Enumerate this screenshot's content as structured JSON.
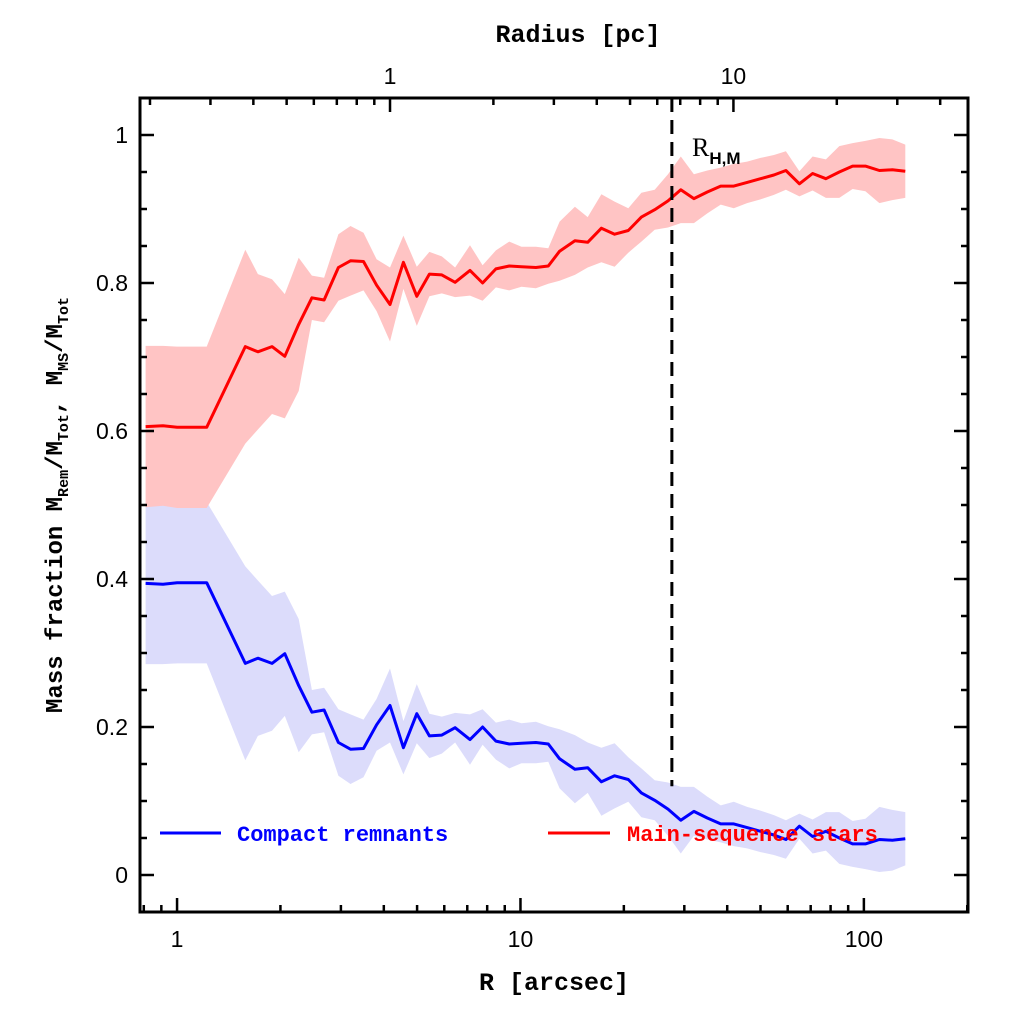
{
  "chart_data": {
    "type": "line",
    "xlabel": "R [arcsec]",
    "x2label": "Radius [pc]",
    "ylabel_parts": {
      "prefix": "Mass fraction  M",
      "sub1": "Rem",
      "mid1": "/M",
      "sub2": "Tot",
      "mid2": ", M",
      "sub3": "MS",
      "mid3": "/M",
      "sub4": "Tot"
    },
    "xscale": "log",
    "xlim": [
      0.78,
      201
    ],
    "ylim": [
      -0.05,
      1.05
    ],
    "arcsec_per_pc": 4.17,
    "xticks": [
      {
        "v": 1,
        "label": "1"
      },
      {
        "v": 10,
        "label": "10"
      },
      {
        "v": 100,
        "label": "100"
      }
    ],
    "x2ticks": [
      {
        "v": 1,
        "label": "1"
      },
      {
        "v": 10,
        "label": "10"
      }
    ],
    "yticks": [
      {
        "v": 0,
        "label": "0"
      },
      {
        "v": 0.2,
        "label": "0.2"
      },
      {
        "v": 0.4,
        "label": "0.4"
      },
      {
        "v": 0.6,
        "label": "0.6"
      },
      {
        "v": 0.8,
        "label": "0.8"
      },
      {
        "v": 1,
        "label": "1"
      }
    ],
    "vline": {
      "x": 27.6,
      "label_main": "R",
      "label_sub": "H,M",
      "style": "dashed"
    },
    "x": [
      0.81,
      0.91,
      1.0,
      1.22,
      1.58,
      1.72,
      1.89,
      2.06,
      2.26,
      2.47,
      2.68,
      2.95,
      3.2,
      3.49,
      3.81,
      4.17,
      4.56,
      4.99,
      5.43,
      5.9,
      6.45,
      7.13,
      7.76,
      8.48,
      9.28,
      10.07,
      11.09,
      12.05,
      13.0,
      14.4,
      15.7,
      17.2,
      18.8,
      20.6,
      22.5,
      24.6,
      26.9,
      29.3,
      32.0,
      35.0,
      38.3,
      41.8,
      45.7,
      50.0,
      54.7,
      59.3,
      64.9,
      70.9,
      77.5,
      84.8,
      92.7,
      101,
      111,
      121,
      132
    ],
    "series": [
      {
        "name": "Compact remnants",
        "color": "#0000ff",
        "band_color": "#dcdcfb",
        "values": [
          0.394,
          0.393,
          0.395,
          0.395,
          0.286,
          0.293,
          0.286,
          0.299,
          0.256,
          0.22,
          0.223,
          0.179,
          0.17,
          0.171,
          0.203,
          0.229,
          0.172,
          0.218,
          0.188,
          0.189,
          0.199,
          0.183,
          0.2,
          0.181,
          0.177,
          0.178,
          0.179,
          0.177,
          0.157,
          0.143,
          0.145,
          0.126,
          0.134,
          0.129,
          0.111,
          0.101,
          0.089,
          0.074,
          0.086,
          0.077,
          0.069,
          0.069,
          0.064,
          0.059,
          0.054,
          0.048,
          0.066,
          0.052,
          0.059,
          0.05,
          0.042,
          0.042,
          0.048,
          0.047,
          0.049
        ],
        "uncertainty": [
          0.109,
          0.108,
          0.109,
          0.109,
          0.131,
          0.105,
          0.091,
          0.084,
          0.09,
          0.03,
          0.03,
          0.045,
          0.047,
          0.039,
          0.035,
          0.05,
          0.036,
          0.04,
          0.03,
          0.025,
          0.02,
          0.034,
          0.024,
          0.025,
          0.033,
          0.027,
          0.028,
          0.024,
          0.04,
          0.046,
          0.034,
          0.046,
          0.044,
          0.03,
          0.033,
          0.027,
          0.036,
          0.045,
          0.033,
          0.029,
          0.025,
          0.03,
          0.028,
          0.028,
          0.027,
          0.026,
          0.017,
          0.023,
          0.026,
          0.035,
          0.031,
          0.034,
          0.044,
          0.041,
          0.036
        ]
      },
      {
        "name": "Main-sequence stars",
        "color": "#ff0000",
        "band_color": "#ffc4c4",
        "values": [
          0.606,
          0.607,
          0.605,
          0.605,
          0.714,
          0.707,
          0.714,
          0.701,
          0.744,
          0.78,
          0.777,
          0.821,
          0.83,
          0.829,
          0.797,
          0.771,
          0.828,
          0.782,
          0.812,
          0.811,
          0.801,
          0.817,
          0.8,
          0.819,
          0.823,
          0.822,
          0.821,
          0.823,
          0.843,
          0.857,
          0.855,
          0.874,
          0.866,
          0.871,
          0.889,
          0.899,
          0.911,
          0.926,
          0.914,
          0.923,
          0.931,
          0.931,
          0.936,
          0.941,
          0.946,
          0.952,
          0.934,
          0.948,
          0.941,
          0.95,
          0.958,
          0.958,
          0.952,
          0.953,
          0.951
        ],
        "uncertainty": [
          0.109,
          0.108,
          0.109,
          0.109,
          0.131,
          0.105,
          0.091,
          0.084,
          0.09,
          0.03,
          0.03,
          0.045,
          0.047,
          0.039,
          0.035,
          0.05,
          0.036,
          0.04,
          0.03,
          0.025,
          0.02,
          0.034,
          0.024,
          0.025,
          0.033,
          0.027,
          0.028,
          0.024,
          0.04,
          0.046,
          0.034,
          0.046,
          0.044,
          0.03,
          0.033,
          0.027,
          0.036,
          0.045,
          0.033,
          0.029,
          0.025,
          0.03,
          0.028,
          0.028,
          0.027,
          0.026,
          0.017,
          0.023,
          0.026,
          0.035,
          0.031,
          0.034,
          0.044,
          0.041,
          0.036
        ]
      }
    ],
    "legend": {
      "placement": "bottom",
      "entries": [
        "Compact remnants",
        "Main-sequence stars"
      ]
    },
    "grid": false
  }
}
